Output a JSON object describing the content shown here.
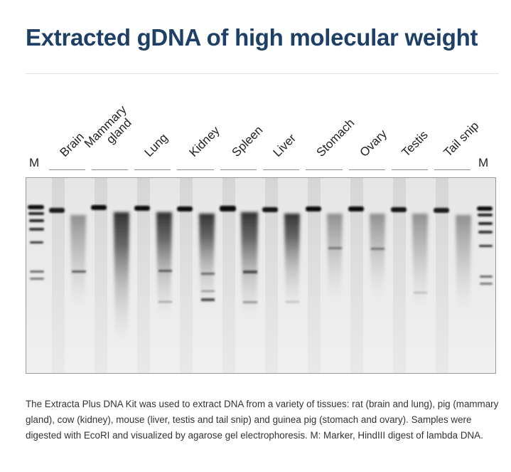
{
  "title": "Extracted gDNA of high molecular weight",
  "marker_label": "M",
  "marker_label_right": "M",
  "lanes": [
    {
      "label": "Brain"
    },
    {
      "label": "Mammary",
      "label2": "gland"
    },
    {
      "label": "Lung"
    },
    {
      "label": "Kidney"
    },
    {
      "label": "Spleen"
    },
    {
      "label": "Liver"
    },
    {
      "label": "Stomach"
    },
    {
      "label": "Ovary"
    },
    {
      "label": "Testis"
    },
    {
      "label": "Tail snip"
    }
  ],
  "caption": "The Extracta Plus DNA Kit was used to extract DNA from a variety of tissues: rat (brain and lung), pig (mammary gland), cow (kidney), mouse (liver, testis and tail snip) and guinea pig (stomach and ovary). Samples were digested with EcoRI and visualized by agarose gel electrophoresis. M: Marker, HindIII digest of lambda DNA.",
  "colors": {
    "title": "#1e3f66",
    "gel_background": "#ececec",
    "band": "#111111"
  }
}
